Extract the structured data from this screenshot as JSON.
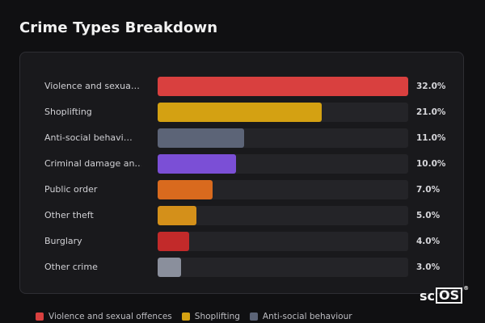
{
  "title": "Crime Types Breakdown",
  "chart_data": {
    "type": "bar",
    "orientation": "horizontal",
    "title": "Crime Types Breakdown",
    "categories": [
      "Violence and sexua…",
      "Shoplifting",
      "Anti-social behavi…",
      "Criminal damage an…",
      "Public order",
      "Other theft",
      "Burglary",
      "Other crime"
    ],
    "values": [
      32.0,
      21.0,
      11.0,
      10.0,
      7.0,
      5.0,
      4.0,
      3.0
    ],
    "value_labels": [
      "32.0%",
      "21.0%",
      "11.0%",
      "10.0%",
      "7.0%",
      "5.0%",
      "4.0%",
      "3.0%"
    ],
    "colors": [
      "#d9403f",
      "#d4a112",
      "#5c6477",
      "#7b4fd6",
      "#d96a1e",
      "#d4901a",
      "#c22a2a",
      "#8a8f9c"
    ],
    "xlim": [
      0,
      32
    ],
    "grid": false,
    "legend_position": "bottom"
  },
  "legend": {
    "items": [
      {
        "label": "Violence and sexual offences",
        "color": "#d9403f"
      },
      {
        "label": "Shoplifting",
        "color": "#d4a112"
      },
      {
        "label": "Anti-social behaviour",
        "color": "#5c6477"
      }
    ]
  },
  "watermark": {
    "prefix": "sc",
    "boxed": "OS",
    "mark": "®"
  }
}
